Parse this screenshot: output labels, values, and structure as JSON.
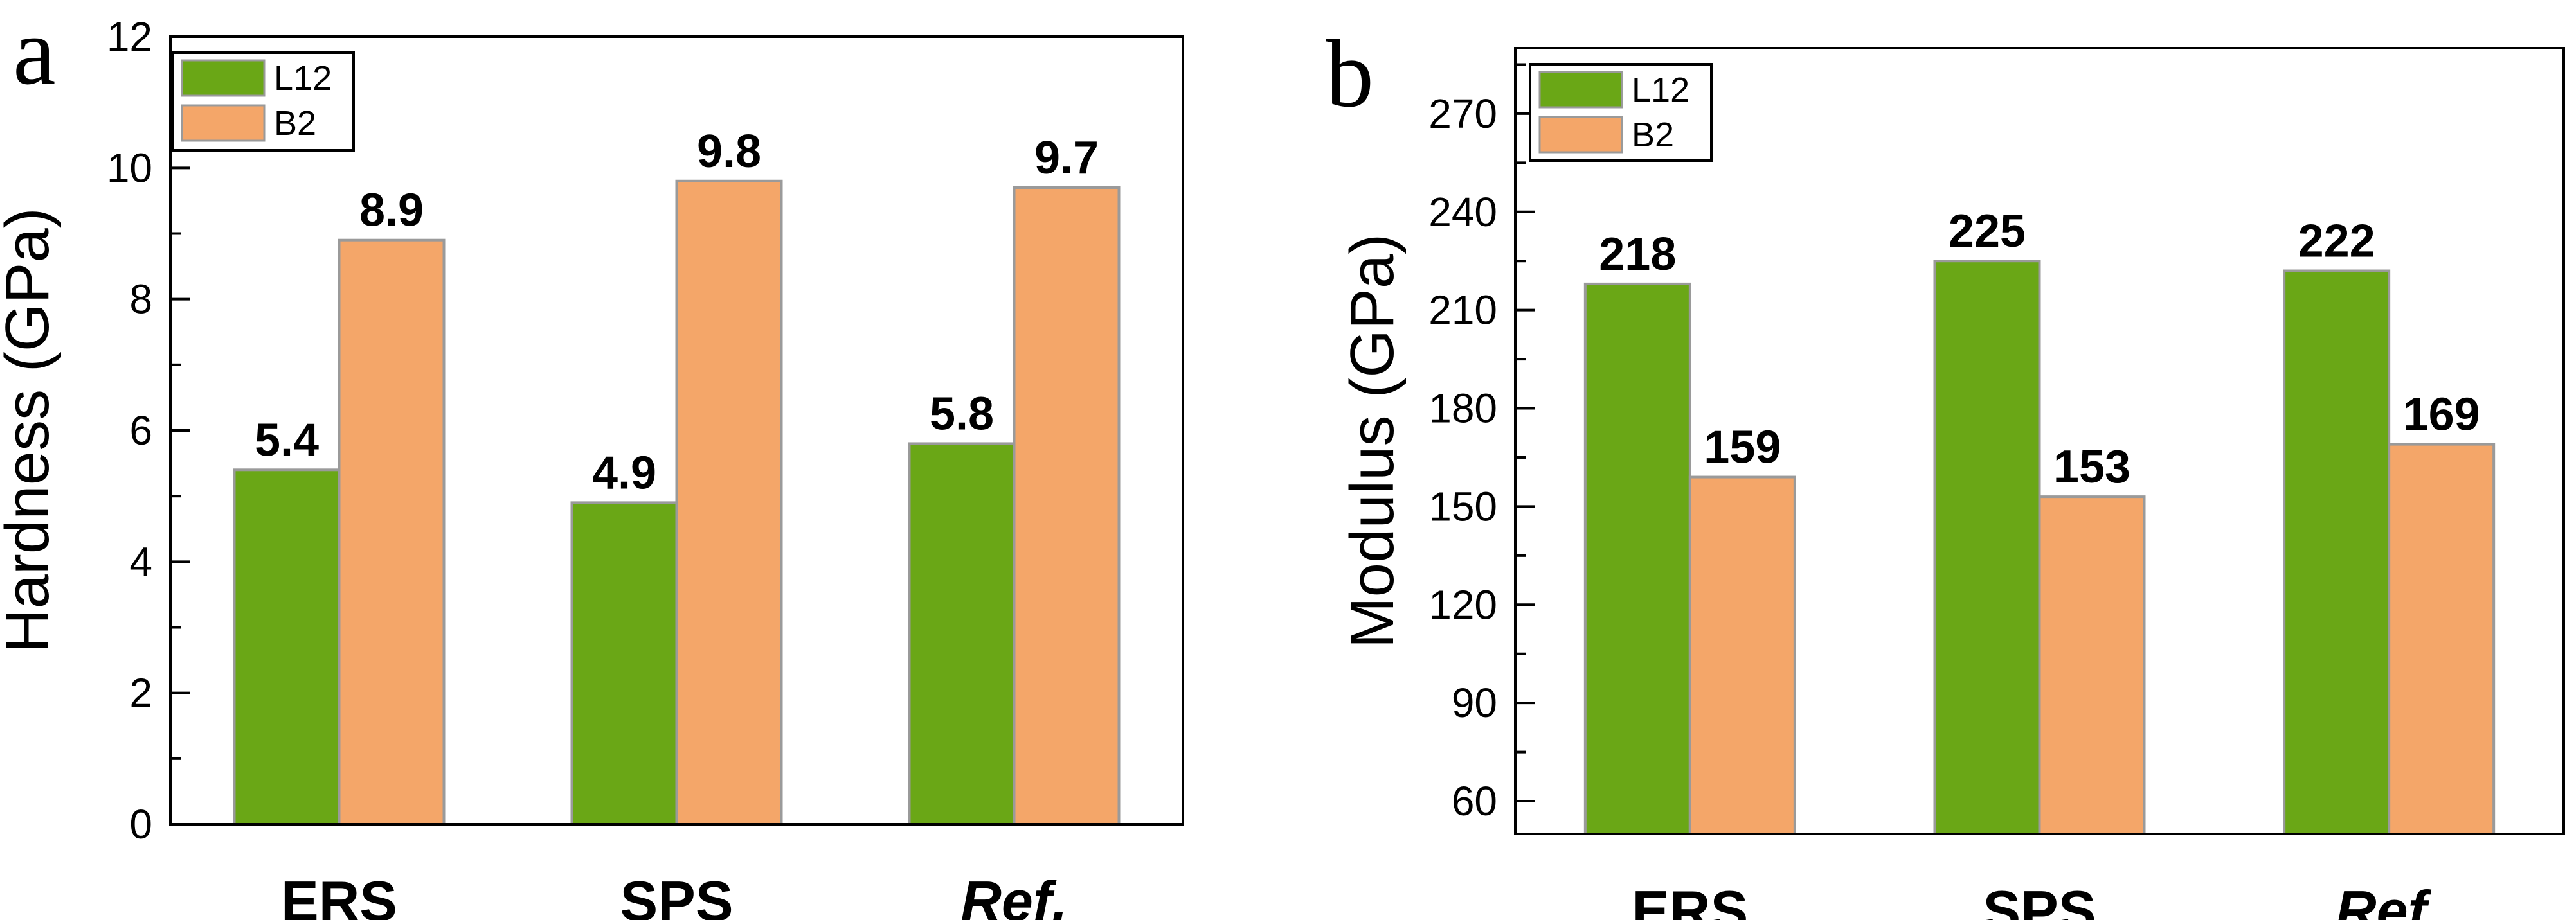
{
  "chart_data": [
    {
      "type": "bar",
      "panel": "a",
      "categories": [
        "ERS",
        "SPS",
        "Ref."
      ],
      "series": [
        {
          "name": "L12",
          "values": [
            5.4,
            4.9,
            5.8
          ]
        },
        {
          "name": "B2",
          "values": [
            8.9,
            9.8,
            9.7
          ]
        }
      ],
      "value_labels": [
        [
          "5.4",
          "4.9",
          "5.8"
        ],
        [
          "8.9",
          "9.8",
          "9.7"
        ]
      ],
      "ylabel": "Hardness (GPa)",
      "xlabel": "",
      "ylim": [
        0,
        12
      ],
      "yticks": [
        0,
        2,
        4,
        6,
        8,
        10,
        12
      ],
      "ytick_labels": [
        "0",
        "2",
        "4",
        "6",
        "8",
        "10",
        "12"
      ],
      "legend": "top-left",
      "grid": false
    },
    {
      "type": "bar",
      "panel": "b",
      "categories": [
        "ERS",
        "SPS",
        "Ref."
      ],
      "series": [
        {
          "name": "L12",
          "values": [
            218,
            225,
            222
          ]
        },
        {
          "name": "B2",
          "values": [
            159,
            153,
            169
          ]
        }
      ],
      "value_labels": [
        [
          "218",
          "225",
          "222"
        ],
        [
          "159",
          "153",
          "169"
        ]
      ],
      "ylabel": "Modulus (GPa)",
      "xlabel": "",
      "ylim": [
        50,
        290
      ],
      "yticks": [
        60,
        90,
        120,
        150,
        180,
        210,
        240,
        270
      ],
      "ytick_labels": [
        "60",
        "90",
        "120",
        "150",
        "180",
        "210",
        "240",
        "270"
      ],
      "legend": "top-left",
      "grid": false
    }
  ],
  "colors": {
    "L12": "#6aa716",
    "B2": "#f4a669",
    "bar_edge": "#9a9a9a"
  }
}
